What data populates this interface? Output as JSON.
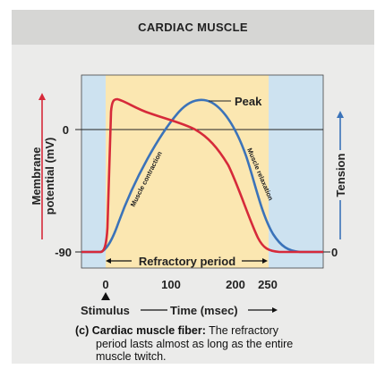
{
  "title": "CARDIAC MUSCLE",
  "colors": {
    "membrane_potential": "#d62a3a",
    "tension": "#3b73b9",
    "refractory_fill": "#fbe7b1",
    "outer_fill": "#cde2f0"
  },
  "y_left": {
    "label_line1": "Membrane",
    "label_line2": "potential (mV)",
    "tick_top": "0",
    "tick_bottom": "-90"
  },
  "y_right": {
    "label": "Tension",
    "tick_bottom": "0"
  },
  "x_axis": {
    "ticks": [
      "0",
      "100",
      "200",
      "250"
    ],
    "label": "Time (msec)",
    "stimulus": "Stimulus"
  },
  "annotations": {
    "peak": "Peak",
    "refractory": "Refractory period",
    "contraction": "Muscle contraction",
    "relaxation": "Muscle relaxation"
  },
  "caption": {
    "lead": "(c) Cardiac muscle fiber:",
    "line1_rest": " The refractory",
    "line2": "period lasts almost as long as the entire",
    "line3": "muscle twitch."
  }
}
